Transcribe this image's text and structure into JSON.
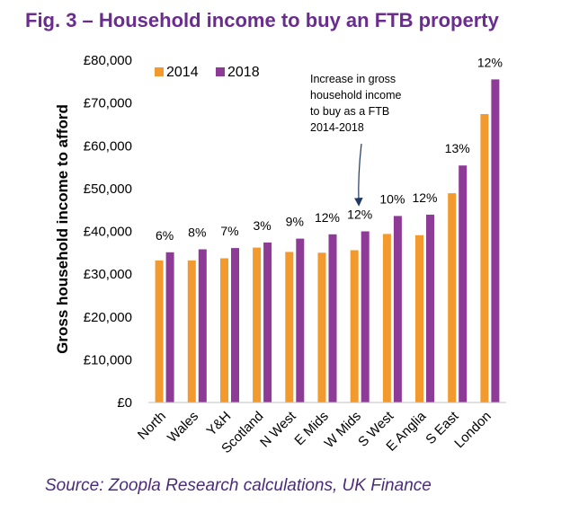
{
  "title": "Fig. 3 – Household income to buy an FTB property",
  "source": "Source: Zoopla Research calculations, UK Finance",
  "colors": {
    "s2014": "#f39a2e",
    "s2018": "#8e3a97",
    "arrow": "#1f3864"
  },
  "chart_data": {
    "type": "bar",
    "title": "Fig. 3 – Household income to buy an FTB property",
    "xlabel": "",
    "ylabel": "Gross household income to afford",
    "ylim": [
      0,
      80000
    ],
    "yticks": [
      0,
      10000,
      20000,
      30000,
      40000,
      50000,
      60000,
      70000,
      80000
    ],
    "ytick_labels": [
      "£0",
      "£10,000",
      "£20,000",
      "£30,000",
      "£40,000",
      "£50,000",
      "£60,000",
      "£70,000",
      "£80,000"
    ],
    "categories": [
      "North",
      "Wales",
      "Y&H",
      "Scotland",
      "N West",
      "E Mids",
      "W Mids",
      "S West",
      "E Anglia",
      "S East",
      "London"
    ],
    "series": [
      {
        "name": "2014",
        "values": [
          33200,
          33200,
          33700,
          36200,
          35200,
          35000,
          35600,
          39400,
          39100,
          48900,
          67400
        ]
      },
      {
        "name": "2018",
        "values": [
          35100,
          35800,
          36100,
          37400,
          38300,
          39300,
          40000,
          43600,
          43900,
          55400,
          75500
        ]
      }
    ],
    "increase_labels": [
      "6%",
      "8%",
      "7%",
      "3%",
      "9%",
      "12%",
      "12%",
      "10%",
      "12%",
      "13%",
      "12%"
    ],
    "legend": [
      "2014",
      "2018"
    ],
    "legend_position": "top-left",
    "annotation": {
      "lines": [
        "Increase in gross",
        "household income",
        "to buy as a FTB",
        "2014-2018"
      ],
      "points_to": "W Mids"
    },
    "grid": false
  }
}
